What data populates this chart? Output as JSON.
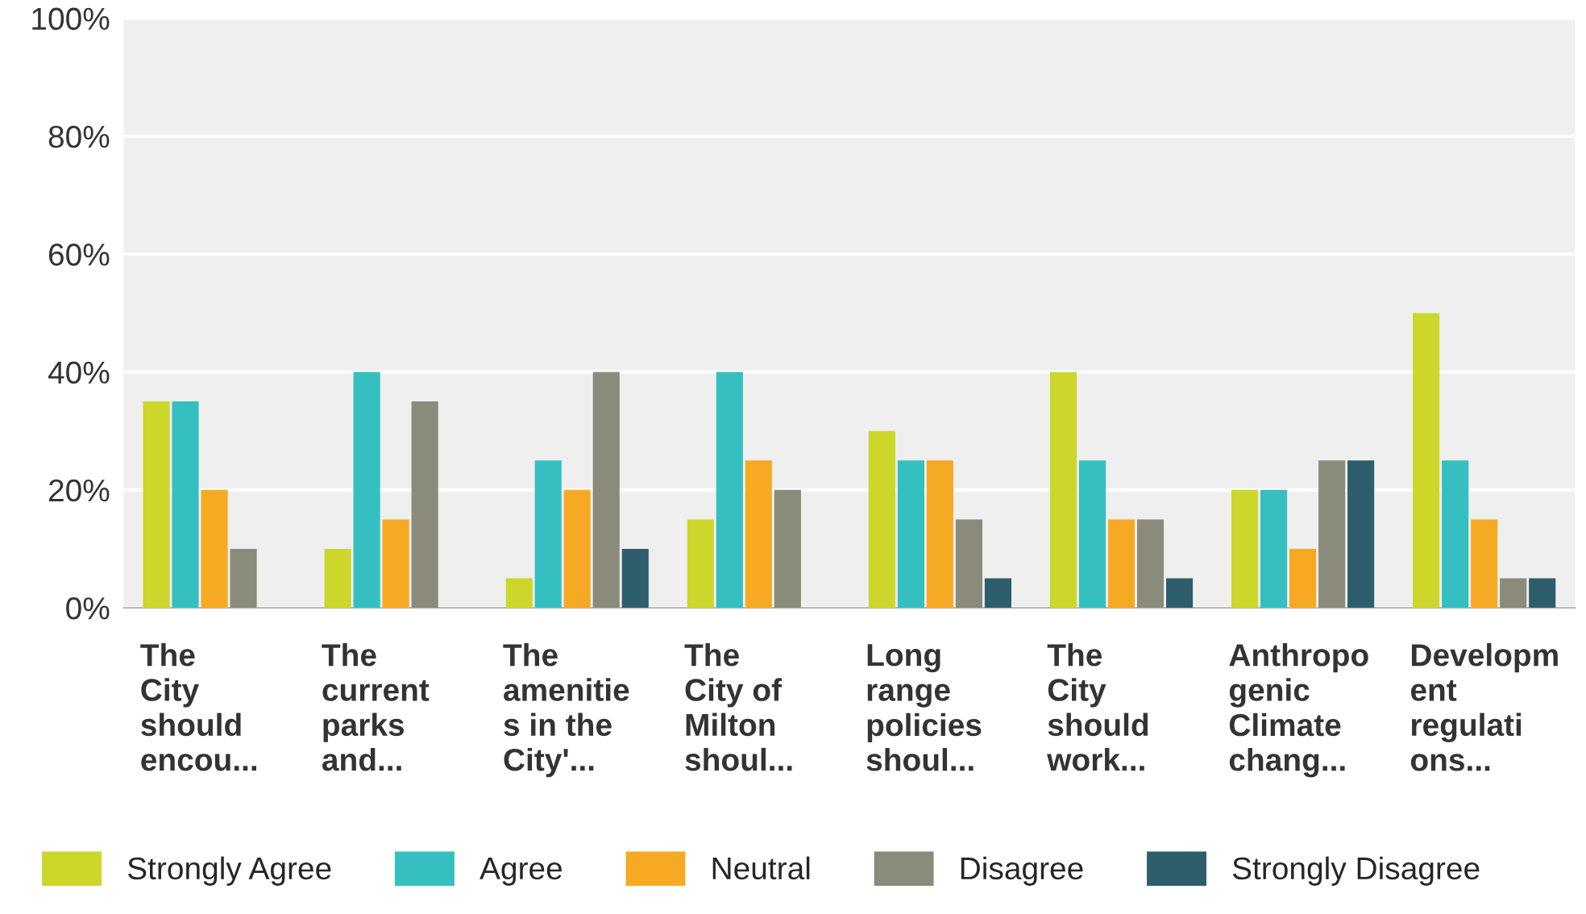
{
  "chart_data": {
    "type": "bar",
    "categories": [
      "The\nCity\nshould\nencou...",
      "The\ncurrent\nparks\nand...",
      "The\namenitie\ns in the\nCity'...",
      "The\nCity of\nMilton\nshoul...",
      "Long\nrange\npolicies\nshoul...",
      "The\nCity\nshould\nwork...",
      "Anthropo\ngenic\nClimate\nchang...",
      "Developm\nent\nregulati\nons..."
    ],
    "series": [
      {
        "name": "Strongly Agree",
        "color": "#cdd62b",
        "values": [
          35,
          10,
          5,
          15,
          30,
          40,
          20,
          50
        ]
      },
      {
        "name": "Agree",
        "color": "#35bfc0",
        "values": [
          35,
          40,
          25,
          40,
          25,
          25,
          20,
          25
        ]
      },
      {
        "name": "Neutral",
        "color": "#f6aa23",
        "values": [
          20,
          15,
          20,
          25,
          25,
          15,
          10,
          15
        ]
      },
      {
        "name": "Disagree",
        "color": "#8a8b7b",
        "values": [
          10,
          35,
          40,
          20,
          15,
          15,
          25,
          5
        ]
      },
      {
        "name": "Strongly Disagree",
        "color": "#2e5e6b",
        "values": [
          0,
          0,
          10,
          0,
          5,
          5,
          25,
          5
        ]
      }
    ],
    "ylim": [
      0,
      100
    ],
    "yticks": [
      {
        "value": 0,
        "label": "0%"
      },
      {
        "value": 20,
        "label": "20%"
      },
      {
        "value": 40,
        "label": "40%"
      },
      {
        "value": 60,
        "label": "60%"
      },
      {
        "value": 80,
        "label": "80%"
      },
      {
        "value": 100,
        "label": "100%"
      }
    ],
    "grid": "y",
    "legend": "bottom"
  }
}
